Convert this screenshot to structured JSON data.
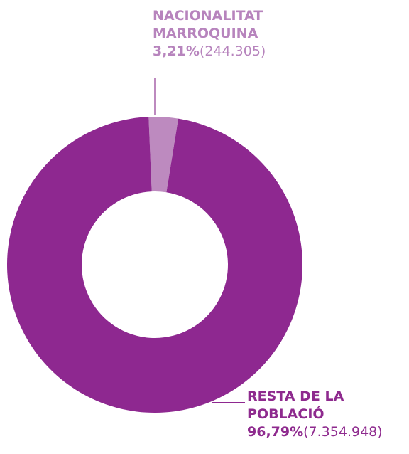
{
  "chart_data": {
    "type": "donut",
    "categories": [
      "NACIONALITAT MARROQUINA",
      "RESTA DE LA POBLACIÓ"
    ],
    "values": [
      3.21,
      96.79
    ],
    "value_labels": [
      "3,21%",
      "96,79%"
    ],
    "counts": [
      244305,
      7354948
    ],
    "count_labels": [
      "(244.305)",
      "(7.354.948)"
    ],
    "colors": [
      "#bd8abf",
      "#8e2890"
    ],
    "label_colors": [
      "#b784bd",
      "#8e2a8e"
    ]
  }
}
